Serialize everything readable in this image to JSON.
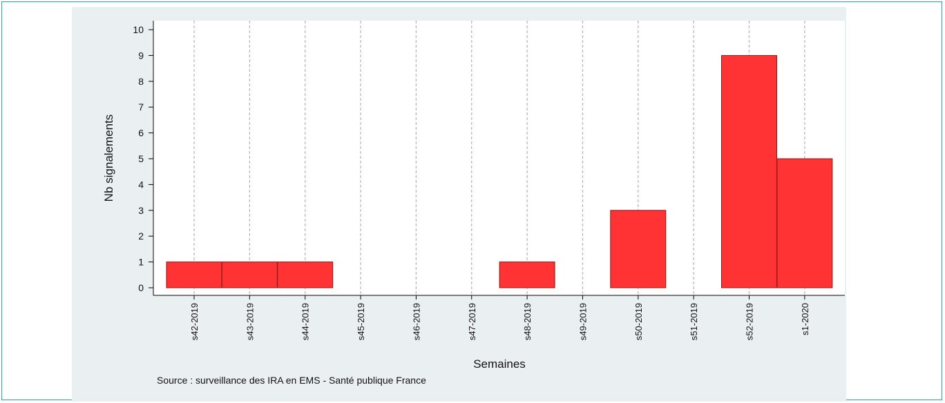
{
  "chart_data": {
    "type": "bar",
    "categories": [
      "s42-2019",
      "s43-2019",
      "s44-2019",
      "s45-2019",
      "s46-2019",
      "s47-2019",
      "s48-2019",
      "s49-2019",
      "s50-2019",
      "s51-2019",
      "s52-2019",
      "s1-2020"
    ],
    "values": [
      1,
      1,
      1,
      0,
      0,
      0,
      1,
      0,
      3,
      0,
      9,
      5
    ],
    "title": "",
    "xlabel": "Semaines",
    "ylabel": "Nb signalements",
    "ylim": [
      0,
      10
    ],
    "yticks": [
      0,
      1,
      2,
      3,
      4,
      5,
      6,
      7,
      8,
      9,
      10
    ],
    "grid": "vertical dashed",
    "bar_color": "#ff3333",
    "bar_edge_color": "#8b1a1a"
  },
  "source_note": "Source : surveillance des IRA en EMS - Santé publique France",
  "colors": {
    "frame_border": "#23a3c4",
    "panel_background": "#eaf0f2",
    "plot_background": "#ffffff",
    "grid": "#b8b8b8"
  }
}
